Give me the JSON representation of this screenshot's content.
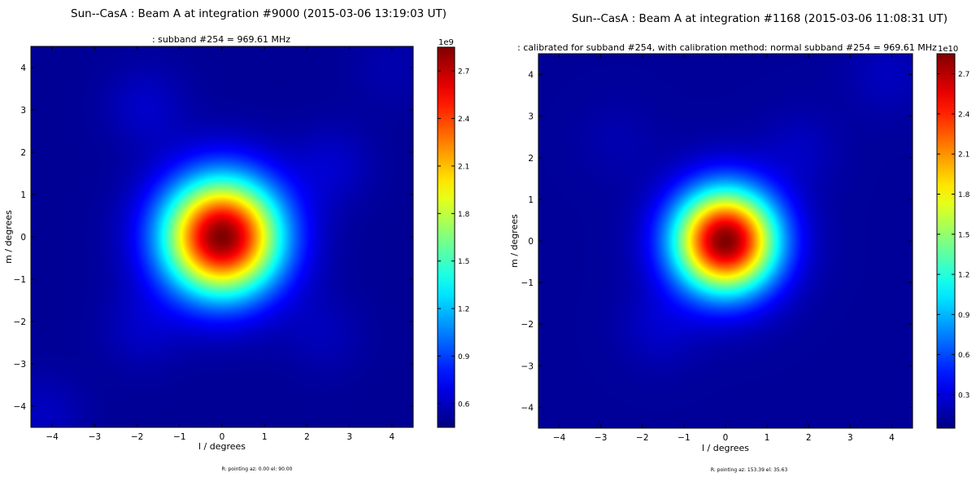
{
  "panels": [
    {
      "title": "Sun--CasA : Beam A at integration #9000 (2015-03-06 13:19:03 UT)",
      "subtitle": ":  subband #254 = 969.61 MHz",
      "xlabel": "l / degrees",
      "ylabel": "m / degrees",
      "footer": "R: pointing az: 0.00 el: 90.00",
      "colorbar_multiplier": "1e9"
    },
    {
      "title": "Sun--CasA : Beam A at integration #1168 (2015-03-06 11:08:31 UT)",
      "subtitle": ": calibrated for subband #254, with calibration method: normal subband #254 = 969.61 MHz",
      "xlabel": "l / degrees",
      "ylabel": "m / degrees",
      "footer": "R: pointing az: 153.39 el: 35.63",
      "colorbar_multiplier": "1e10"
    }
  ],
  "chart_data": [
    {
      "type": "heatmap",
      "title": "Sun--CasA : Beam A at integration #9000 (2015-03-06 13:19:03 UT)",
      "subtitle": ":  subband #254 = 969.61 MHz",
      "xlabel": "l / degrees",
      "ylabel": "m / degrees",
      "xlim": [
        -4.5,
        4.5
      ],
      "ylim": [
        -4.5,
        4.5
      ],
      "xticks": [
        -4,
        -3,
        -2,
        -1,
        0,
        1,
        2,
        3,
        4
      ],
      "yticks": [
        -4,
        -3,
        -2,
        -1,
        0,
        1,
        2,
        3,
        4
      ],
      "colormap": "jet",
      "colorbar": {
        "range": [
          0.45,
          2.85
        ],
        "ticks": [
          0.6,
          0.9,
          1.2,
          1.5,
          1.8,
          2.1,
          2.4,
          2.7
        ],
        "multiplier": "1e9"
      },
      "peak": {
        "l": 0.0,
        "m": 0.0,
        "value": 2.85
      },
      "beam_width_deg": 1.45,
      "background": 0.5,
      "sidelobes": [
        {
          "l": -1.8,
          "m": 3.1,
          "amp": 0.12
        },
        {
          "l": 2.6,
          "m": 1.7,
          "amp": 0.12
        },
        {
          "l": -1.9,
          "m": -2.2,
          "amp": 0.1
        },
        {
          "l": 2.4,
          "m": -2.3,
          "amp": 0.08
        },
        {
          "l": -4.2,
          "m": -4.2,
          "amp": 0.1
        },
        {
          "l": 4.0,
          "m": 4.0,
          "amp": 0.06
        }
      ]
    },
    {
      "type": "heatmap",
      "title": "Sun--CasA : Beam A at integration #1168 (2015-03-06 11:08:31 UT)",
      "subtitle": ": calibrated for subband #254, with calibration method: normal subband #254 = 969.61 MHz",
      "xlabel": "l / degrees",
      "ylabel": "m / degrees",
      "xlim": [
        -4.5,
        4.5
      ],
      "ylim": [
        -4.5,
        4.5
      ],
      "xticks": [
        -4,
        -3,
        -2,
        -1,
        0,
        1,
        2,
        3,
        4
      ],
      "yticks": [
        -4,
        -3,
        -2,
        -1,
        0,
        1,
        2,
        3,
        4
      ],
      "colormap": "jet",
      "colorbar": {
        "range": [
          0.05,
          2.85
        ],
        "ticks": [
          0.3,
          0.6,
          0.9,
          1.2,
          1.5,
          1.8,
          2.1,
          2.4,
          2.7
        ],
        "multiplier": "1e10"
      },
      "peak": {
        "l": 0.0,
        "m": 0.0,
        "value": 2.85
      },
      "beam_width_deg": 1.3,
      "background": 0.12,
      "sidelobes": [
        {
          "l": -1.6,
          "m": -2.1,
          "amp": 0.12
        },
        {
          "l": 1.8,
          "m": 2.2,
          "amp": 0.1
        },
        {
          "l": 3.9,
          "m": 4.0,
          "amp": 0.1
        },
        {
          "l": -2.6,
          "m": 2.4,
          "amp": 0.06
        }
      ]
    }
  ]
}
